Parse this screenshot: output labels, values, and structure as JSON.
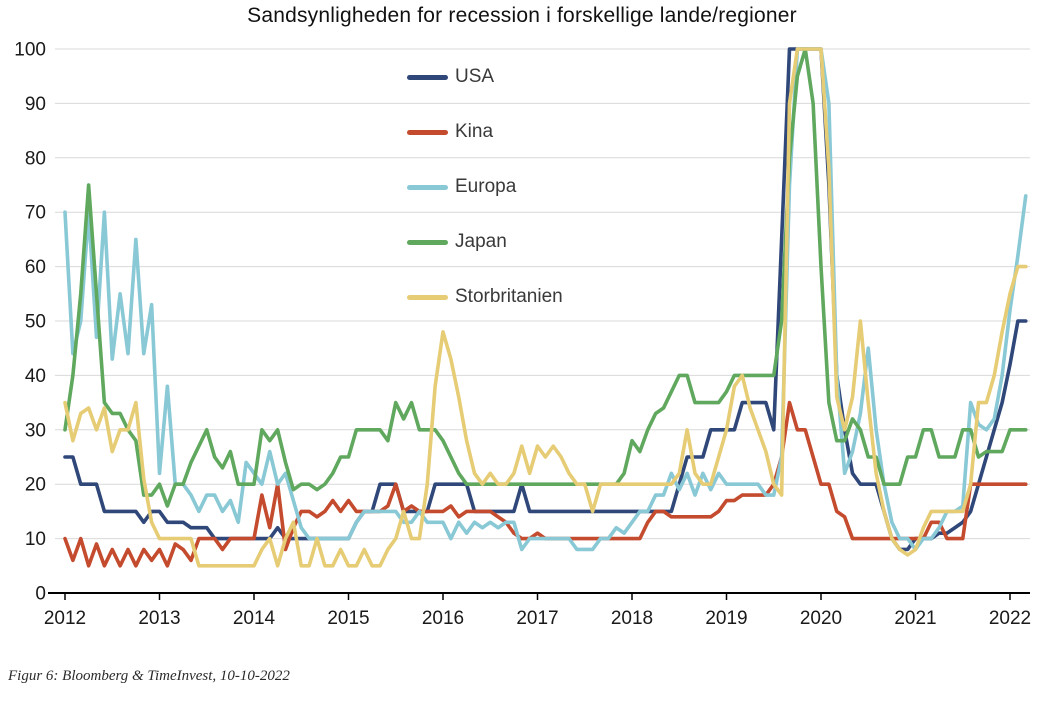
{
  "title": "Sandsynligheden for recession i forskellige lande/regioner",
  "caption": "Figur 6: Bloomberg & TimeInvest, 10-10-2022",
  "colors": {
    "grid": "#d9d9d9",
    "axis": "#000000",
    "tick_label": "#1a1a1a"
  },
  "chart_data": {
    "type": "line",
    "title": "Sandsynligheden for recession i forskellige lande/regioner",
    "xlabel": "",
    "ylabel": "",
    "ylim": [
      0,
      100
    ],
    "y_ticks": [
      0,
      10,
      20,
      30,
      40,
      50,
      60,
      70,
      80,
      90,
      100
    ],
    "x_ticks": [
      2012,
      2013,
      2014,
      2015,
      2016,
      2017,
      2018,
      2019,
      2020,
      2021,
      2022
    ],
    "x_start_year": 2012,
    "x_step_months": 1,
    "grid": "horizontal",
    "legend_position": "top-center-vertical",
    "series": [
      {
        "name": "USA",
        "color": "#2f4779",
        "values": [
          25,
          25,
          20,
          20,
          20,
          15,
          15,
          15,
          15,
          15,
          13,
          15,
          15,
          13,
          13,
          13,
          12,
          12,
          12,
          10,
          10,
          10,
          10,
          10,
          10,
          10,
          10,
          12,
          10,
          10,
          10,
          10,
          10,
          10,
          10,
          10,
          10,
          13,
          15,
          15,
          20,
          20,
          20,
          15,
          15,
          15,
          15,
          20,
          20,
          20,
          20,
          20,
          15,
          15,
          15,
          15,
          15,
          15,
          20,
          15,
          15,
          15,
          15,
          15,
          15,
          15,
          15,
          15,
          15,
          15,
          15,
          15,
          15,
          15,
          15,
          15,
          15,
          15,
          20,
          25,
          25,
          25,
          30,
          30,
          30,
          30,
          35,
          35,
          35,
          35,
          30,
          65,
          100,
          100,
          100,
          100,
          100,
          75,
          40,
          30,
          22,
          20,
          20,
          20,
          15,
          10,
          8,
          8,
          10,
          10,
          10,
          11,
          11,
          12,
          13,
          15,
          20,
          25,
          30,
          35,
          42,
          50,
          50
        ]
      },
      {
        "name": "Kina",
        "color": "#c44b2e",
        "values": [
          10,
          6,
          10,
          5,
          9,
          5,
          8,
          5,
          8,
          5,
          8,
          6,
          8,
          5,
          9,
          8,
          6,
          10,
          10,
          10,
          8,
          10,
          10,
          10,
          10,
          18,
          12,
          20,
          8,
          12,
          15,
          15,
          14,
          15,
          17,
          15,
          17,
          15,
          15,
          15,
          15,
          16,
          20,
          15,
          16,
          15,
          15,
          15,
          15,
          16,
          14,
          15,
          15,
          15,
          15,
          14,
          13,
          11,
          10,
          10,
          11,
          10,
          10,
          10,
          10,
          10,
          10,
          10,
          10,
          10,
          10,
          10,
          10,
          10,
          13,
          15,
          15,
          14,
          14,
          14,
          14,
          14,
          14,
          15,
          17,
          17,
          18,
          18,
          18,
          18,
          20,
          25,
          35,
          30,
          30,
          25,
          20,
          20,
          15,
          14,
          10,
          10,
          10,
          10,
          10,
          10,
          10,
          10,
          10,
          10,
          13,
          13,
          10,
          10,
          10,
          20,
          20,
          20,
          20,
          20,
          20,
          20,
          20
        ]
      },
      {
        "name": "Europa",
        "color": "#89c8d5",
        "values": [
          70,
          44,
          50,
          70,
          47,
          70,
          43,
          55,
          44,
          65,
          44,
          53,
          22,
          38,
          20,
          20,
          18,
          15,
          18,
          18,
          15,
          17,
          13,
          24,
          22,
          20,
          26,
          20,
          22,
          17,
          12,
          10,
          10,
          10,
          10,
          10,
          10,
          13,
          15,
          15,
          15,
          15,
          15,
          13,
          13,
          15,
          13,
          13,
          13,
          10,
          13,
          11,
          13,
          12,
          13,
          12,
          13,
          13,
          8,
          10,
          10,
          10,
          10,
          10,
          10,
          8,
          8,
          8,
          10,
          10,
          12,
          11,
          13,
          15,
          15,
          18,
          18,
          22,
          19,
          22,
          18,
          22,
          19,
          22,
          20,
          20,
          20,
          20,
          20,
          18,
          18,
          25,
          75,
          100,
          100,
          100,
          100,
          90,
          40,
          22,
          26,
          33,
          45,
          30,
          20,
          13,
          10,
          10,
          8,
          10,
          10,
          12,
          15,
          15,
          16,
          35,
          31,
          30,
          32,
          40,
          52,
          62,
          73
        ]
      },
      {
        "name": "Japan",
        "color": "#5fa85e",
        "values": [
          30,
          40,
          55,
          75,
          55,
          35,
          33,
          33,
          30,
          28,
          18,
          18,
          20,
          16,
          20,
          20,
          24,
          27,
          30,
          25,
          23,
          26,
          20,
          20,
          20,
          30,
          28,
          30,
          24,
          19,
          20,
          20,
          19,
          20,
          22,
          25,
          25,
          30,
          30,
          30,
          30,
          28,
          35,
          32,
          35,
          30,
          30,
          30,
          28,
          25,
          22,
          20,
          20,
          20,
          20,
          20,
          20,
          20,
          20,
          20,
          20,
          20,
          20,
          20,
          20,
          20,
          20,
          20,
          20,
          20,
          20,
          22,
          28,
          26,
          30,
          33,
          34,
          37,
          40,
          40,
          35,
          35,
          35,
          35,
          37,
          40,
          40,
          40,
          40,
          40,
          40,
          50,
          80,
          95,
          100,
          90,
          60,
          35,
          28,
          28,
          32,
          30,
          25,
          25,
          20,
          20,
          20,
          25,
          25,
          30,
          30,
          25,
          25,
          25,
          30,
          30,
          25,
          26,
          26,
          26,
          30,
          30,
          30
        ]
      },
      {
        "name": "Storbritanien",
        "color": "#e6cc74",
        "values": [
          35,
          28,
          33,
          34,
          30,
          34,
          26,
          30,
          30,
          35,
          21,
          13,
          10,
          10,
          10,
          10,
          10,
          5,
          5,
          5,
          5,
          5,
          5,
          5,
          5,
          8,
          10,
          5,
          10,
          13,
          5,
          5,
          10,
          5,
          5,
          8,
          5,
          5,
          8,
          5,
          5,
          8,
          10,
          15,
          10,
          10,
          20,
          38,
          48,
          43,
          36,
          28,
          22,
          20,
          22,
          20,
          20,
          22,
          27,
          22,
          27,
          25,
          27,
          25,
          22,
          20,
          20,
          15,
          20,
          20,
          20,
          20,
          20,
          20,
          20,
          20,
          20,
          20,
          22,
          30,
          22,
          20,
          20,
          25,
          30,
          38,
          40,
          34,
          30,
          26,
          20,
          18,
          90,
          100,
          100,
          100,
          100,
          78,
          36,
          30,
          36,
          50,
          35,
          22,
          15,
          10,
          8,
          7,
          8,
          12,
          15,
          15,
          15,
          15,
          15,
          20,
          35,
          35,
          40,
          48,
          55,
          60,
          60
        ]
      }
    ]
  },
  "legend_items": [
    "USA",
    "Kina",
    "Europa",
    "Japan",
    "Storbritanien"
  ]
}
